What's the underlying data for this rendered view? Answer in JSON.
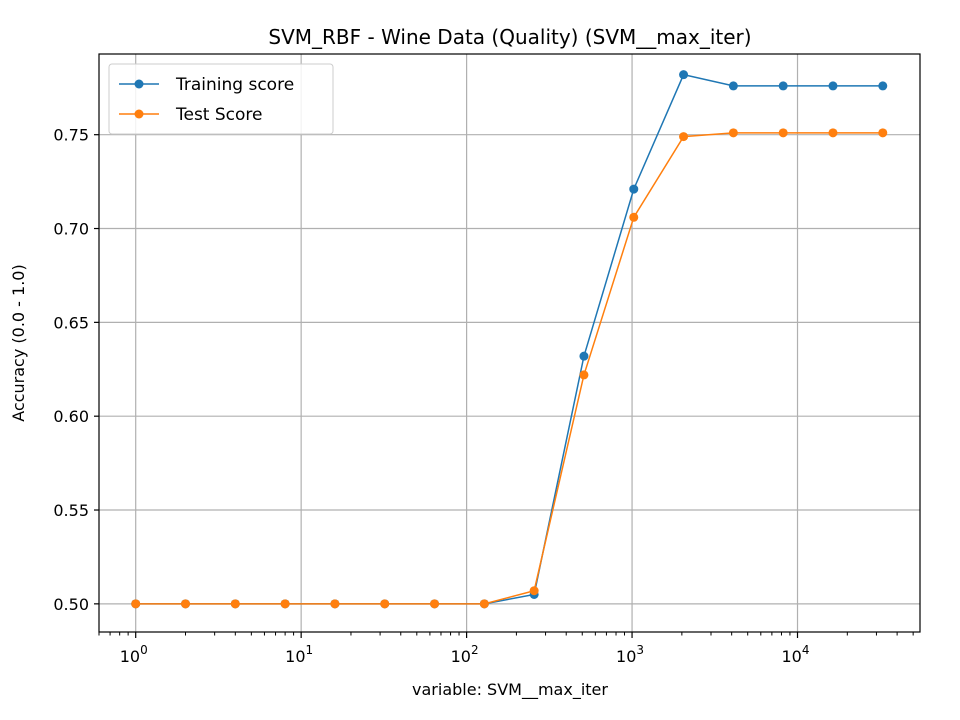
{
  "chart_data": {
    "type": "line",
    "title": "SVM_RBF - Wine Data (Quality) (SVM__max_iter)",
    "xlabel": "variable: SVM__max_iter",
    "ylabel": "Accuracy (0.0 - 1.0)",
    "xscale": "log",
    "xlim": [
      0.6,
      55000
    ],
    "ylim": [
      0.485,
      0.793
    ],
    "grid": true,
    "legend_position": "top-left",
    "x": [
      1,
      2,
      4,
      8,
      16,
      32,
      64,
      128,
      256,
      512,
      1024,
      2048,
      4096,
      8192,
      16384,
      32768
    ],
    "x_ticks": [
      {
        "value": 1,
        "base": "10",
        "exp": "0"
      },
      {
        "value": 10,
        "base": "10",
        "exp": "1"
      },
      {
        "value": 100,
        "base": "10",
        "exp": "2"
      },
      {
        "value": 1000,
        "base": "10",
        "exp": "3"
      },
      {
        "value": 10000,
        "base": "10",
        "exp": "4"
      }
    ],
    "y_ticks": [
      0.5,
      0.55,
      0.6,
      0.65,
      0.7,
      0.75
    ],
    "y_tick_labels": [
      "0.50",
      "0.55",
      "0.60",
      "0.65",
      "0.70",
      "0.75"
    ],
    "series": [
      {
        "name": "Training score",
        "color": "#1f77b4",
        "values": [
          0.5,
          0.5,
          0.5,
          0.5,
          0.5,
          0.5,
          0.5,
          0.5,
          0.505,
          0.632,
          0.721,
          0.782,
          0.776,
          0.776,
          0.776,
          0.776
        ]
      },
      {
        "name": "Test Score",
        "color": "#ff7f0e",
        "values": [
          0.5,
          0.5,
          0.5,
          0.5,
          0.5,
          0.5,
          0.5,
          0.5,
          0.507,
          0.622,
          0.706,
          0.749,
          0.751,
          0.751,
          0.751,
          0.751
        ]
      }
    ]
  }
}
